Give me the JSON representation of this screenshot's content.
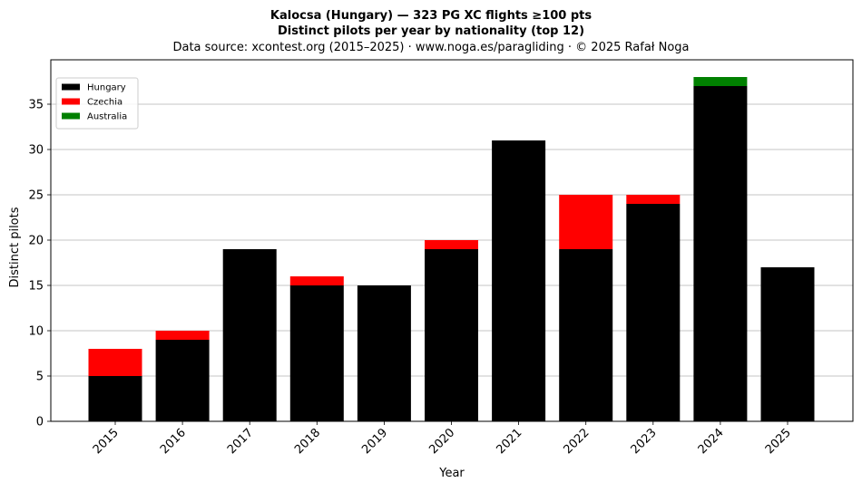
{
  "title_line1": "Kalocsa (Hungary)  —  323 PG XC flights ≥100 pts",
  "title_line2": "Distinct pilots per year by nationality (top 12)",
  "subtitle": "Data source: xcontest.org (2015–2025)  ·  www.noga.es/paragliding  ·  © 2025 Rafał Noga",
  "chart_data": {
    "type": "bar",
    "stacked": true,
    "categories": [
      "2015",
      "2016",
      "2017",
      "2018",
      "2019",
      "2020",
      "2021",
      "2022",
      "2023",
      "2024",
      "2025"
    ],
    "series": [
      {
        "name": "Hungary",
        "color": "#000000",
        "values": [
          5,
          9,
          19,
          15,
          15,
          19,
          31,
          19,
          24,
          37,
          17
        ]
      },
      {
        "name": "Czechia",
        "color": "#ff0000",
        "values": [
          3,
          1,
          0,
          1,
          0,
          1,
          0,
          6,
          1,
          0,
          0
        ]
      },
      {
        "name": "Australia",
        "color": "#008000",
        "values": [
          0,
          0,
          0,
          0,
          0,
          0,
          0,
          0,
          0,
          1,
          0
        ]
      }
    ],
    "xlabel": "Year",
    "ylabel": "Distinct pilots",
    "ylim": [
      0,
      39.9
    ],
    "yticks": [
      0,
      5,
      10,
      15,
      20,
      25,
      30,
      35
    ],
    "grid": "y",
    "legend_position": "top-left"
  }
}
